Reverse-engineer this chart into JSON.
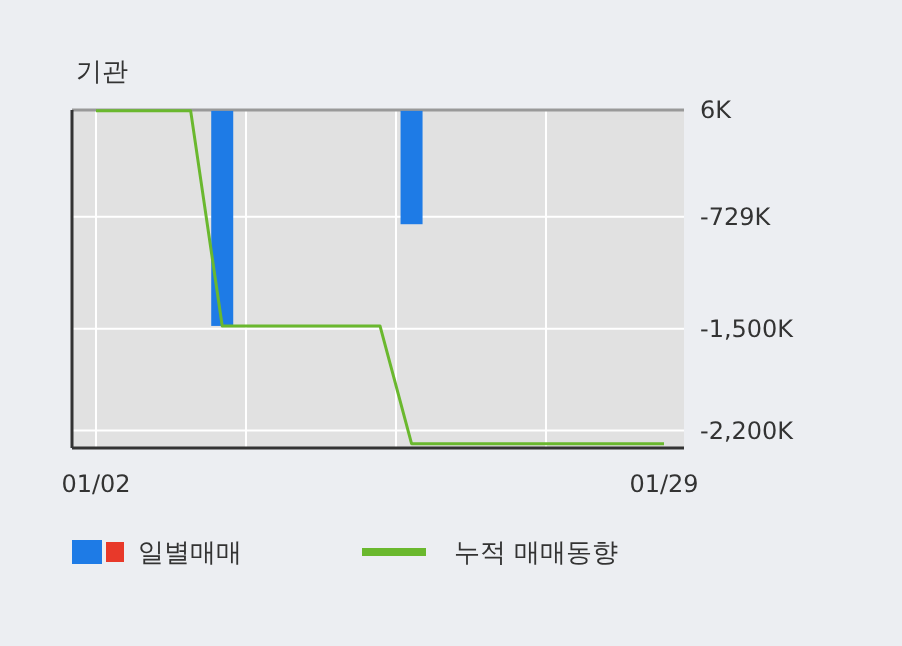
{
  "chart_data": {
    "type": "bar",
    "title": "기관",
    "categories": [
      "01/02",
      null,
      null,
      null,
      null,
      null,
      null,
      null,
      null,
      null,
      null,
      null,
      null,
      null,
      null,
      null,
      null,
      null,
      "01/29"
    ],
    "series": [
      {
        "name": "일별매매",
        "color": "#1e7be6",
        "values": [
          null,
          null,
          null,
          null,
          -1480,
          null,
          null,
          null,
          null,
          null,
          -780,
          null,
          null,
          null,
          null,
          null,
          null,
          null,
          null
        ]
      },
      {
        "name": "누적 매매동향",
        "type": "line",
        "color": "#6ab82e",
        "values": [
          0,
          0,
          0,
          0,
          -1480,
          -1480,
          -1480,
          -1480,
          -1480,
          -1480,
          -2290,
          -2290,
          -2290,
          -2290,
          -2290,
          -2290,
          -2290,
          -2290,
          -2290
        ]
      }
    ],
    "ylim": [
      -2320,
      6
    ],
    "yticks": [
      {
        "value": 6,
        "label": "6K"
      },
      {
        "value": -729,
        "label": "-729K"
      },
      {
        "value": -1500,
        "label": "-1,500K"
      },
      {
        "value": -2200,
        "label": "-2,200K"
      }
    ],
    "grid": true,
    "legend": "bottom",
    "marker": "none"
  }
}
